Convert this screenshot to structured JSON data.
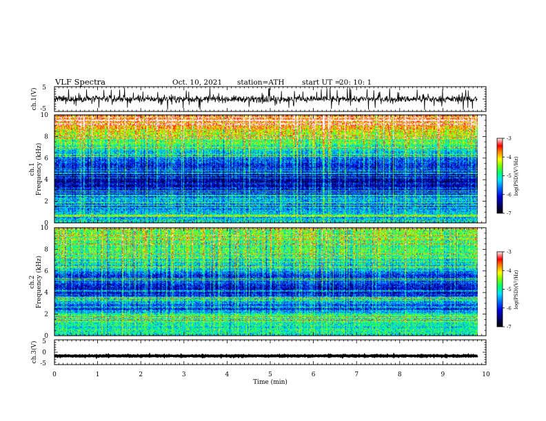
{
  "header": {
    "title": "VLF  Spectra",
    "date": "Oct. 10, 2021",
    "station": "station=ATH",
    "start_label": "start  UT  =",
    "start_time": "20: 10: 1"
  },
  "colors": {
    "background": "#ffffff",
    "waveform": "#000000",
    "colormap": [
      "#000060",
      "#0000c8",
      "#0050ff",
      "#00c8ff",
      "#00ff80",
      "#60ff00",
      "#ffff00",
      "#ff8000",
      "#ff0000",
      "#ffe0e0"
    ]
  },
  "chart_data": [
    {
      "type": "line",
      "ylabel": "ch.1(V)",
      "ylim": [
        -5,
        5
      ],
      "yticks": [
        "5",
        "-5"
      ],
      "xlim": [
        0,
        10
      ],
      "description_values": {
        "baseline_v": 0,
        "amplitude_v": 1.2,
        "spikes": true
      }
    },
    {
      "type": "heatmap",
      "ylabel": "ch.1\nFrequency  (kHz)",
      "ylim": [
        0,
        10
      ],
      "yticks": [
        "0",
        "2",
        "4",
        "6",
        "8",
        "10"
      ],
      "xlim": [
        0,
        9.8
      ],
      "colorbar": {
        "label": "log(PSD)(V²/Hz)",
        "range": [
          -7,
          -3
        ],
        "ticks": [
          "-3",
          "-4",
          "-5",
          "-6",
          "-7"
        ]
      },
      "profile_kHz": [
        [
          0,
          -5.2
        ],
        [
          0.5,
          -5.4
        ],
        [
          1,
          -5.3
        ],
        [
          1.5,
          -5.8
        ],
        [
          2,
          -5.6
        ],
        [
          2.2,
          -5.2
        ],
        [
          2.5,
          -5.9
        ],
        [
          3,
          -6.0
        ],
        [
          3.5,
          -6.2
        ],
        [
          4,
          -6.3
        ],
        [
          4.5,
          -6.3
        ],
        [
          5,
          -6.1
        ],
        [
          5.5,
          -5.9
        ],
        [
          6,
          -5.6
        ],
        [
          6.5,
          -5.3
        ],
        [
          7,
          -5.0
        ],
        [
          7.5,
          -4.7
        ],
        [
          8,
          -4.4
        ],
        [
          8.5,
          -4.1
        ],
        [
          9,
          -3.8
        ],
        [
          9.5,
          -3.6
        ],
        [
          10,
          -3.5
        ]
      ]
    },
    {
      "type": "heatmap",
      "ylabel": "ch.2\nFrequency  (kHz)",
      "ylim": [
        0,
        10
      ],
      "yticks": [
        "0",
        "2",
        "4",
        "6",
        "8",
        "10"
      ],
      "xlim": [
        0,
        9.8
      ],
      "colorbar": {
        "label": "log(PSD)(V²/Hz)",
        "range": [
          -7,
          -3
        ],
        "ticks": [
          "-3",
          "-4",
          "-5",
          "-6",
          "-7"
        ]
      },
      "profile_kHz": [
        [
          0,
          -5.0
        ],
        [
          0.5,
          -5.0
        ],
        [
          1,
          -5.1
        ],
        [
          1.5,
          -5.0
        ],
        [
          2,
          -5.1
        ],
        [
          2.5,
          -5.9
        ],
        [
          3,
          -5.6
        ],
        [
          3.5,
          -5.4
        ],
        [
          4,
          -6.2
        ],
        [
          4.5,
          -6.1
        ],
        [
          5,
          -5.8
        ],
        [
          5.5,
          -6.0
        ],
        [
          6,
          -5.4
        ],
        [
          6.5,
          -5.2
        ],
        [
          7,
          -5.0
        ],
        [
          7.5,
          -4.9
        ],
        [
          8,
          -4.8
        ],
        [
          8.5,
          -4.7
        ],
        [
          9,
          -4.6
        ],
        [
          9.5,
          -4.5
        ],
        [
          10,
          -4.5
        ]
      ]
    },
    {
      "type": "line",
      "ylabel": "ch.3(V)",
      "ylim": [
        -5,
        5
      ],
      "yticks": [
        "5",
        "0",
        "-5"
      ],
      "xlim": [
        0,
        10
      ],
      "xticks": [
        "0",
        "1",
        "2",
        "3",
        "4",
        "5",
        "6",
        "7",
        "8",
        "9",
        "10"
      ],
      "xlabel": "Time  (min)",
      "description_values": {
        "baseline_v": -1.5,
        "amplitude_v": 0.15,
        "spikes": false
      }
    }
  ]
}
